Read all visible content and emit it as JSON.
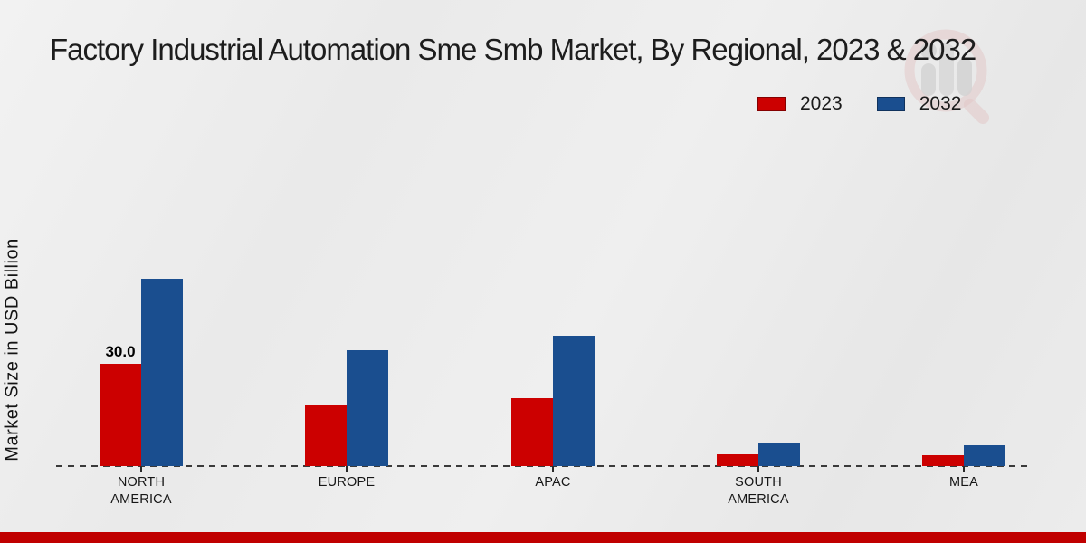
{
  "page": {
    "title": "Factory Industrial Automation Sme Smb Market, By Regional, 2023 & 2032"
  },
  "colors": {
    "bar_2023": "#cc0000",
    "bar_2032": "#1a4e8f",
    "footer_bar": "#c00000",
    "baseline": "#3a3a3a",
    "text": "#1a1a1a",
    "watermark_red": "#d9a3a3",
    "watermark_gray": "#b7b7b7"
  },
  "icons": {
    "watermark": "magnifier-bar-chart-logo"
  },
  "chart_data": {
    "type": "bar",
    "title": "Factory Industrial Automation Sme Smb Market, By Regional, 2023 & 2032",
    "xlabel": "",
    "ylabel": "Market Size in USD Billion",
    "categories": [
      "NORTH\nAMERICA",
      "EUROPE",
      "APAC",
      "SOUTH\nAMERICA",
      "MEA"
    ],
    "series": [
      {
        "name": "2023",
        "color": "#cc0000",
        "values": [
          30.0,
          17.8,
          19.9,
          3.5,
          3.2
        ],
        "value_labels": [
          "30.0",
          null,
          null,
          null,
          null
        ]
      },
      {
        "name": "2032",
        "color": "#1a4e8f",
        "values": [
          55.0,
          34.0,
          38.2,
          6.6,
          6.1
        ],
        "value_labels": [
          null,
          null,
          null,
          null,
          null
        ]
      }
    ],
    "legend_position": "top-right",
    "grid": false,
    "baseline_style": "dashed",
    "y_axis_ticks_visible": false,
    "unit": "USD Billion"
  }
}
